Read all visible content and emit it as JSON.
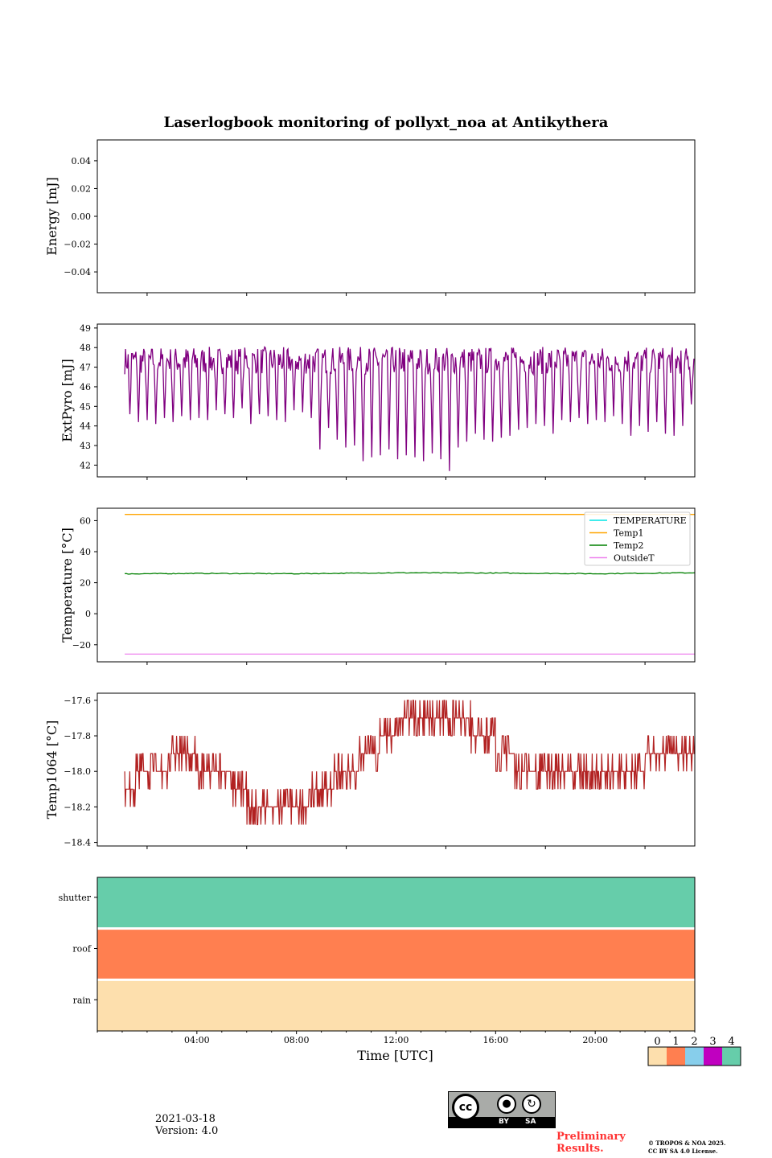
{
  "title": "Laserlogbook monitoring of pollyxt_noa at Antikythera",
  "chart_data": [
    {
      "type": "line",
      "ylabel": "Energy [mJ]",
      "ylim": [
        -0.055,
        0.055
      ],
      "yticks": [
        -0.04,
        -0.02,
        0.0,
        0.02,
        0.04
      ],
      "ytick_labels": [
        "−0.04",
        "−0.02",
        "0.00",
        "0.02",
        "0.04"
      ],
      "series": []
    },
    {
      "type": "line",
      "ylabel": "ExtPyro [mJ]",
      "ylim": [
        41.4,
        49.2
      ],
      "yticks": [
        42,
        43,
        44,
        45,
        46,
        47,
        48,
        49
      ],
      "ytick_labels": [
        "42",
        "43",
        "44",
        "45",
        "46",
        "47",
        "48",
        "49"
      ],
      "series": [
        {
          "color": "#800080",
          "x_range_hours": [
            1.1,
            24.0
          ],
          "baseline": 47.2,
          "dips": [
            44.6,
            44.2,
            44.3,
            44.1,
            44.4,
            44.2,
            44.5,
            44.3,
            44.4,
            44.3,
            44.8,
            44.6,
            44.4,
            44.9,
            44.1,
            44.6,
            44.5,
            44.3,
            44.2,
            44.8,
            44.7,
            44.4,
            42.8,
            43.9,
            43.3,
            42.9,
            43.0,
            42.2,
            42.4,
            42.5,
            42.8,
            42.3,
            42.5,
            42.4,
            42.2,
            42.6,
            42.3,
            41.7,
            42.9,
            43.2,
            43.6,
            43.3,
            43.2,
            43.4,
            43.5,
            43.8,
            43.9,
            44.1,
            44.0,
            43.6,
            44.3,
            44.2,
            44.4,
            44.1,
            44.3,
            44.2,
            44.5,
            44.1,
            43.5,
            44.0,
            43.7,
            44.2,
            43.6,
            43.5,
            44.0,
            45.1
          ]
        }
      ]
    },
    {
      "type": "line",
      "ylabel": "Temperature [°C]",
      "ylim": [
        -31,
        68
      ],
      "yticks": [
        -20,
        0,
        20,
        40,
        60
      ],
      "ytick_labels": [
        "−20",
        "0",
        "20",
        "40",
        "60"
      ],
      "legend": "top-right",
      "series": [
        {
          "name": "TEMPERATURE",
          "color": "#00e5e5",
          "values": []
        },
        {
          "name": "Temp1",
          "color": "#ffa500",
          "x": [
            1.1,
            24.0
          ],
          "values": [
            64,
            64
          ]
        },
        {
          "name": "Temp2",
          "color": "#008000",
          "x": [
            1.1,
            4,
            8,
            12,
            16,
            20,
            24.0
          ],
          "values": [
            25.7,
            26.0,
            25.8,
            26.4,
            26.2,
            25.8,
            26.4
          ]
        },
        {
          "name": "OutsideT",
          "color": "#ee82ee",
          "x": [
            1.1,
            24.0
          ],
          "values": [
            -26,
            -26
          ]
        }
      ]
    },
    {
      "type": "line",
      "ylabel": "Temp1064 [°C]",
      "ylim": [
        -18.42,
        -17.56
      ],
      "yticks": [
        -18.4,
        -18.2,
        -18.0,
        -17.8,
        -17.6
      ],
      "ytick_labels": [
        "−18.4",
        "−18.2",
        "−18.0",
        "−17.8",
        "−17.6"
      ],
      "series": [
        {
          "color": "#b22222",
          "x": [
            1.1,
            2.0,
            3.0,
            4.0,
            5.0,
            6.0,
            7.0,
            8.0,
            9.0,
            10.0,
            11.0,
            12.0,
            13.0,
            14.0,
            15.0,
            16.0,
            17.0,
            18.0,
            19.0,
            20.0,
            21.0,
            22.0,
            23.0,
            24.0
          ],
          "values": [
            -18.1,
            -18.0,
            -17.95,
            -17.95,
            -18.0,
            -18.15,
            -18.25,
            -18.2,
            -18.1,
            -18.0,
            -17.9,
            -17.75,
            -17.65,
            -17.7,
            -17.75,
            -17.85,
            -18.0,
            -18.05,
            -18.05,
            -18.05,
            -18.0,
            -17.95,
            -17.9,
            -17.9
          ],
          "noise": 0.05
        }
      ]
    },
    {
      "type": "heatmap",
      "rows": [
        "shutter",
        "roof",
        "rain"
      ],
      "row_values": [
        4,
        1,
        0
      ],
      "xlabel": "Time [UTC]",
      "xlim": [
        0,
        24
      ],
      "xticks": [
        "04:00",
        "08:00",
        "12:00",
        "16:00",
        "20:00"
      ],
      "colorbar": {
        "labels": [
          "0",
          "1",
          "2",
          "3",
          "4"
        ],
        "colors": [
          "#fddfad",
          "#ff7f50",
          "#87ceeb",
          "#c000c0",
          "#66cdaa"
        ]
      }
    }
  ],
  "footer": {
    "date": "2021-03-18",
    "version": "Version: 4.0",
    "license_badge": [
      "BY",
      "SA"
    ],
    "preliminary": [
      "Preliminary",
      "Results."
    ],
    "copyright": [
      "© TROPOS & NOA 2025.",
      "CC BY SA 4.0 License."
    ]
  }
}
